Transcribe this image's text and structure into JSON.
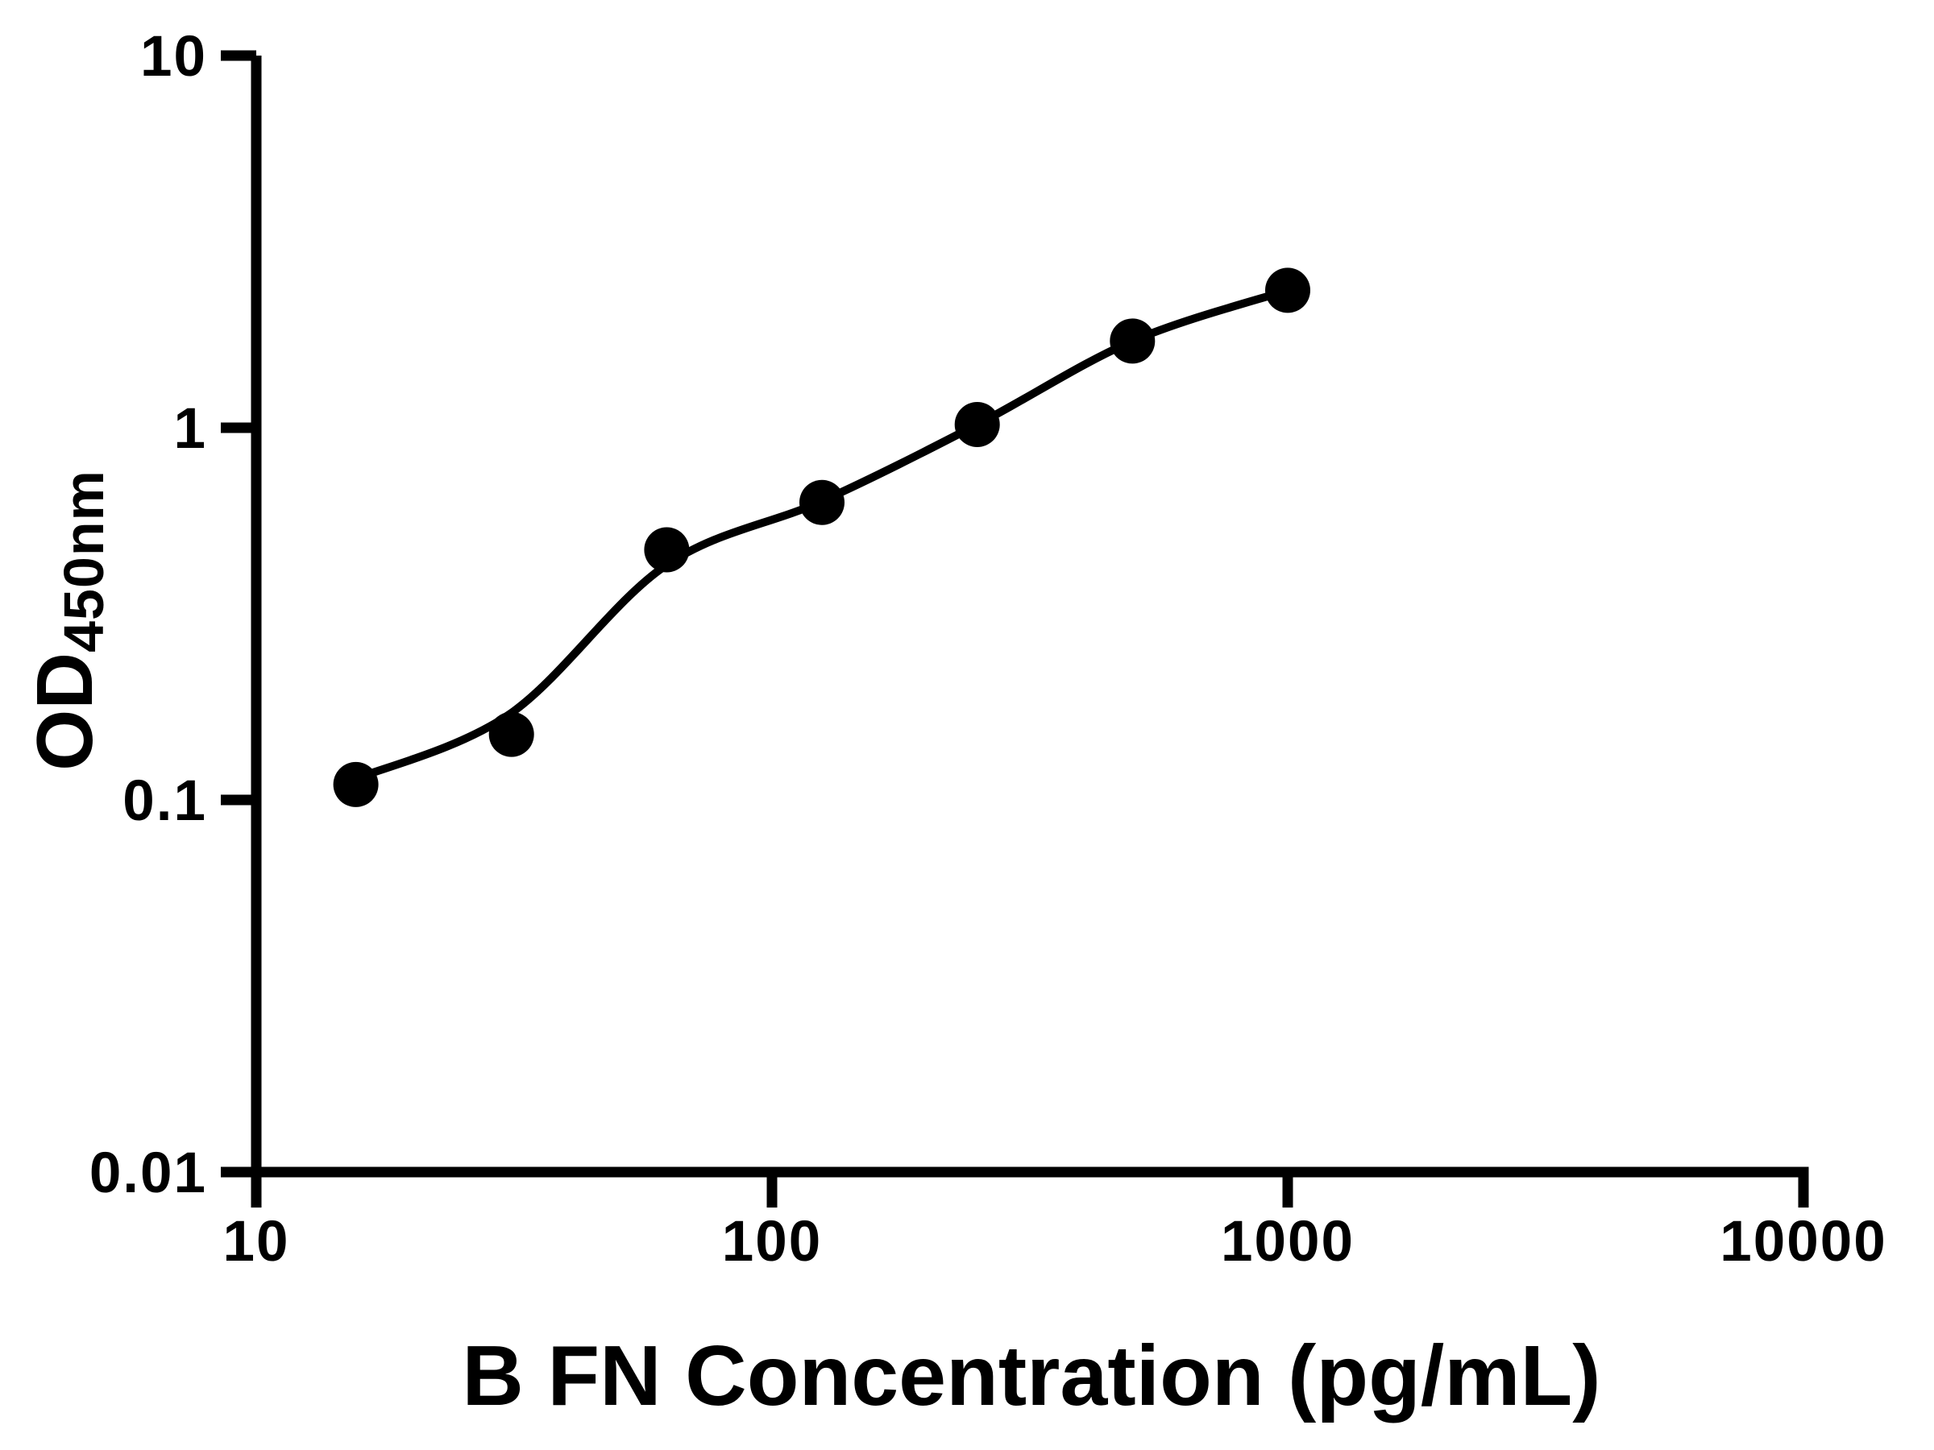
{
  "chart_data": {
    "type": "scatter",
    "title": "",
    "xlabel": "B FN Concentration (pg/mL)",
    "ylabel_base": "OD",
    "ylabel_subscript": "450nm",
    "x_scale": "log10",
    "y_scale": "log10",
    "xlim": [
      10,
      10000
    ],
    "ylim": [
      0.01,
      10
    ],
    "x_ticks": {
      "values": [
        10,
        100,
        1000,
        10000
      ],
      "labels": [
        "10",
        "100",
        "1000",
        "10000"
      ]
    },
    "y_ticks": {
      "values": [
        0.01,
        0.1,
        1,
        10
      ],
      "labels": [
        "0.01",
        "0.1",
        "1",
        "10"
      ]
    },
    "grid": false,
    "legend": false,
    "background_color": "#ffffff",
    "axis_color": "#000000",
    "marker_color": "#000000",
    "line_color": "#000000",
    "series": [
      {
        "name": "standard-curve-points",
        "marker": "filled-circle",
        "x": [
          15.6,
          31.25,
          62.5,
          125,
          250,
          500,
          1000
        ],
        "y": [
          0.11,
          0.15,
          0.47,
          0.63,
          1.02,
          1.71,
          2.34
        ]
      }
    ],
    "fit_curve": {
      "name": "fit-curve",
      "x": [
        15.6,
        31,
        62,
        125,
        250,
        500,
        1000
      ],
      "y": [
        0.114,
        0.17,
        0.425,
        0.635,
        1.02,
        1.71,
        2.34
      ]
    }
  }
}
